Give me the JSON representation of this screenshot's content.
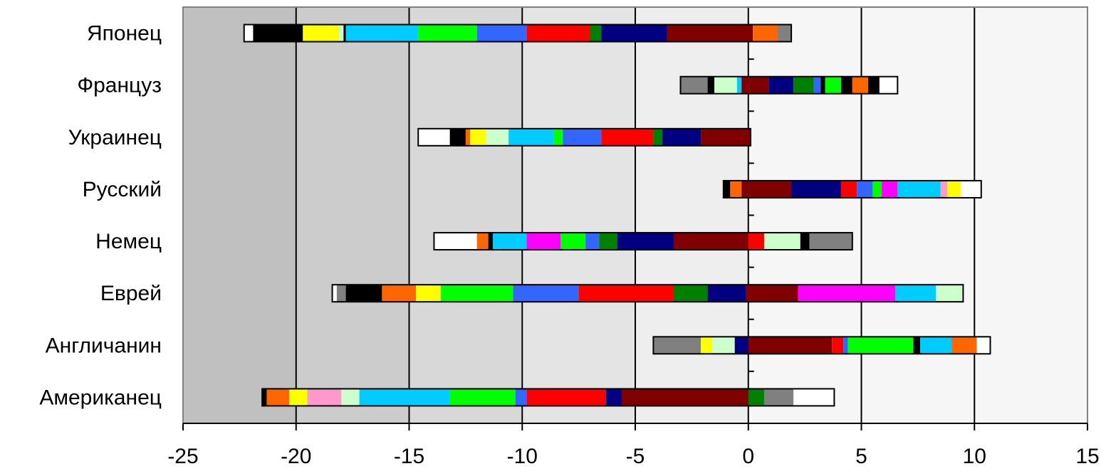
{
  "chart_data": {
    "type": "bar",
    "orientation": "horizontal",
    "stacked": true,
    "title": "",
    "xlabel": "",
    "ylabel": "",
    "xlim": [
      -25,
      15
    ],
    "xticks": [
      -25,
      -20,
      -15,
      -10,
      -5,
      0,
      5,
      10,
      15
    ],
    "tick_labels": [
      "-25",
      "-20",
      "-15",
      "-10",
      "-5",
      "0",
      "5",
      "10",
      "15"
    ],
    "grid": "vertical",
    "legend": "none",
    "categories": [
      "Японец",
      "Француз",
      "Украинец",
      "Русский",
      "Немец",
      "Еврей",
      "Англичанин",
      "Американец"
    ],
    "colors": {
      "bg_band_1": "#c0c0c0",
      "bg_band_2": "#cccccc",
      "bg_band_3": "#d8d8d8",
      "bg_band_4": "#e4e4e4",
      "bg_band_5": "#eeeeee",
      "bg_band_6": "#f6f6f6",
      "border": "#808080"
    },
    "bars": [
      {
        "name": "Японец",
        "segments": [
          {
            "from": -22.3,
            "to": -21.9,
            "color": "#ffffff"
          },
          {
            "from": -21.9,
            "to": -19.7,
            "color": "#000000"
          },
          {
            "from": -19.7,
            "to": -18.1,
            "color": "#ffff00"
          },
          {
            "from": -18.1,
            "to": -17.9,
            "color": "#ccffcc"
          },
          {
            "from": -17.9,
            "to": -17.8,
            "color": "#000000"
          },
          {
            "from": -17.8,
            "to": -14.6,
            "color": "#00ccff"
          },
          {
            "from": -14.6,
            "to": -12.0,
            "color": "#00ff00"
          },
          {
            "from": -12.0,
            "to": -9.8,
            "color": "#3366ff"
          },
          {
            "from": -9.8,
            "to": -7.0,
            "color": "#ff0000"
          },
          {
            "from": -7.0,
            "to": -6.5,
            "color": "#008000"
          },
          {
            "from": -6.5,
            "to": -3.6,
            "color": "#000080"
          },
          {
            "from": -3.6,
            "to": 0.2,
            "color": "#800000"
          },
          {
            "from": 0.2,
            "to": 1.3,
            "color": "#ff6600"
          },
          {
            "from": 1.3,
            "to": 1.9,
            "color": "#808080"
          }
        ]
      },
      {
        "name": "Француз",
        "segments": [
          {
            "from": -3.0,
            "to": -1.8,
            "color": "#808080"
          },
          {
            "from": -1.8,
            "to": -1.5,
            "color": "#000000"
          },
          {
            "from": -1.5,
            "to": -0.5,
            "color": "#ccffcc"
          },
          {
            "from": -0.5,
            "to": -0.3,
            "color": "#00ccff"
          },
          {
            "from": -0.3,
            "to": 0.9,
            "color": "#800000"
          },
          {
            "from": 0.9,
            "to": 2.0,
            "color": "#000080"
          },
          {
            "from": 2.0,
            "to": 2.9,
            "color": "#008000"
          },
          {
            "from": 2.9,
            "to": 3.2,
            "color": "#3366ff"
          },
          {
            "from": 3.2,
            "to": 3.4,
            "color": "#000000"
          },
          {
            "from": 3.4,
            "to": 4.1,
            "color": "#00ff00"
          },
          {
            "from": 4.1,
            "to": 4.6,
            "color": "#000000"
          },
          {
            "from": 4.6,
            "to": 5.3,
            "color": "#ff6600"
          },
          {
            "from": 5.3,
            "to": 5.8,
            "color": "#000000"
          },
          {
            "from": 5.8,
            "to": 6.6,
            "color": "#ffffff"
          }
        ]
      },
      {
        "name": "Украинец",
        "segments": [
          {
            "from": -14.6,
            "to": -13.2,
            "color": "#ffffff"
          },
          {
            "from": -13.2,
            "to": -12.5,
            "color": "#000000"
          },
          {
            "from": -12.5,
            "to": -12.3,
            "color": "#ff6600"
          },
          {
            "from": -12.3,
            "to": -11.6,
            "color": "#ffff00"
          },
          {
            "from": -11.6,
            "to": -10.6,
            "color": "#ccffcc"
          },
          {
            "from": -10.6,
            "to": -8.6,
            "color": "#00ccff"
          },
          {
            "from": -8.6,
            "to": -8.2,
            "color": "#00ff00"
          },
          {
            "from": -8.2,
            "to": -6.5,
            "color": "#3366ff"
          },
          {
            "from": -6.5,
            "to": -4.2,
            "color": "#ff0000"
          },
          {
            "from": -4.2,
            "to": -3.8,
            "color": "#008000"
          },
          {
            "from": -3.8,
            "to": -2.1,
            "color": "#000080"
          },
          {
            "from": -2.1,
            "to": 0.1,
            "color": "#800000"
          }
        ]
      },
      {
        "name": "Русский",
        "segments": [
          {
            "from": -1.1,
            "to": -0.8,
            "color": "#000000"
          },
          {
            "from": -0.8,
            "to": -0.3,
            "color": "#ff6600"
          },
          {
            "from": -0.3,
            "to": 1.9,
            "color": "#800000"
          },
          {
            "from": 1.9,
            "to": 4.1,
            "color": "#000080"
          },
          {
            "from": 4.1,
            "to": 4.8,
            "color": "#ff0000"
          },
          {
            "from": 4.8,
            "to": 5.5,
            "color": "#3366ff"
          },
          {
            "from": 5.5,
            "to": 5.9,
            "color": "#00ff00"
          },
          {
            "from": 5.9,
            "to": 6.6,
            "color": "#ff00ff"
          },
          {
            "from": 6.6,
            "to": 8.5,
            "color": "#00ccff"
          },
          {
            "from": 8.5,
            "to": 8.8,
            "color": "#ff99cc"
          },
          {
            "from": 8.8,
            "to": 9.4,
            "color": "#ffff00"
          },
          {
            "from": 9.4,
            "to": 10.3,
            "color": "#ffffff"
          }
        ]
      },
      {
        "name": "Немец",
        "segments": [
          {
            "from": -13.9,
            "to": -12.0,
            "color": "#ffffff"
          },
          {
            "from": -12.0,
            "to": -11.5,
            "color": "#ff6600"
          },
          {
            "from": -11.5,
            "to": -11.3,
            "color": "#000000"
          },
          {
            "from": -11.3,
            "to": -9.8,
            "color": "#00ccff"
          },
          {
            "from": -9.8,
            "to": -8.3,
            "color": "#ff00ff"
          },
          {
            "from": -8.3,
            "to": -7.2,
            "color": "#00ff00"
          },
          {
            "from": -7.2,
            "to": -6.6,
            "color": "#3366ff"
          },
          {
            "from": -6.6,
            "to": -5.8,
            "color": "#008000"
          },
          {
            "from": -5.8,
            "to": -3.3,
            "color": "#000080"
          },
          {
            "from": -3.3,
            "to": 0.0,
            "color": "#800000"
          },
          {
            "from": 0.0,
            "to": 0.7,
            "color": "#ff0000"
          },
          {
            "from": 0.7,
            "to": 2.3,
            "color": "#ccffcc"
          },
          {
            "from": 2.3,
            "to": 2.7,
            "color": "#000000"
          },
          {
            "from": 2.7,
            "to": 4.6,
            "color": "#808080"
          }
        ]
      },
      {
        "name": "Еврей",
        "segments": [
          {
            "from": -18.4,
            "to": -18.2,
            "color": "#ffffff"
          },
          {
            "from": -18.2,
            "to": -17.8,
            "color": "#808080"
          },
          {
            "from": -17.8,
            "to": -16.2,
            "color": "#000000"
          },
          {
            "from": -16.2,
            "to": -14.7,
            "color": "#ff6600"
          },
          {
            "from": -14.7,
            "to": -13.6,
            "color": "#ffff00"
          },
          {
            "from": -13.6,
            "to": -10.4,
            "color": "#00ff00"
          },
          {
            "from": -10.4,
            "to": -7.5,
            "color": "#3366ff"
          },
          {
            "from": -7.5,
            "to": -3.3,
            "color": "#ff0000"
          },
          {
            "from": -3.3,
            "to": -1.8,
            "color": "#008000"
          },
          {
            "from": -1.8,
            "to": -0.1,
            "color": "#000080"
          },
          {
            "from": -0.1,
            "to": 2.2,
            "color": "#800000"
          },
          {
            "from": 2.2,
            "to": 6.5,
            "color": "#ff00ff"
          },
          {
            "from": 6.5,
            "to": 8.3,
            "color": "#00ccff"
          },
          {
            "from": 8.3,
            "to": 9.5,
            "color": "#ccffcc"
          }
        ]
      },
      {
        "name": "Англичанин",
        "segments": [
          {
            "from": -4.2,
            "to": -2.1,
            "color": "#808080"
          },
          {
            "from": -2.1,
            "to": -1.6,
            "color": "#ffff00"
          },
          {
            "from": -1.6,
            "to": -0.6,
            "color": "#ccffcc"
          },
          {
            "from": -0.6,
            "to": 0.0,
            "color": "#000080"
          },
          {
            "from": 0.0,
            "to": 3.7,
            "color": "#800000"
          },
          {
            "from": 3.7,
            "to": 4.2,
            "color": "#ff0000"
          },
          {
            "from": 4.2,
            "to": 4.4,
            "color": "#3366ff"
          },
          {
            "from": 4.4,
            "to": 7.3,
            "color": "#00ff00"
          },
          {
            "from": 7.3,
            "to": 7.6,
            "color": "#000000"
          },
          {
            "from": 7.6,
            "to": 9.0,
            "color": "#00ccff"
          },
          {
            "from": 9.0,
            "to": 10.1,
            "color": "#ff6600"
          },
          {
            "from": 10.1,
            "to": 10.7,
            "color": "#ffffff"
          }
        ]
      },
      {
        "name": "Американец",
        "segments": [
          {
            "from": -21.5,
            "to": -21.3,
            "color": "#000000"
          },
          {
            "from": -21.3,
            "to": -20.3,
            "color": "#ff6600"
          },
          {
            "from": -20.3,
            "to": -19.5,
            "color": "#ffff00"
          },
          {
            "from": -19.5,
            "to": -18.0,
            "color": "#ff99cc"
          },
          {
            "from": -18.0,
            "to": -17.2,
            "color": "#ccffcc"
          },
          {
            "from": -17.2,
            "to": -13.2,
            "color": "#00ccff"
          },
          {
            "from": -13.2,
            "to": -10.3,
            "color": "#00ff00"
          },
          {
            "from": -10.3,
            "to": -9.8,
            "color": "#3366ff"
          },
          {
            "from": -9.8,
            "to": -6.3,
            "color": "#ff0000"
          },
          {
            "from": -6.3,
            "to": -5.6,
            "color": "#000080"
          },
          {
            "from": -5.6,
            "to": 0.0,
            "color": "#800000"
          },
          {
            "from": 0.0,
            "to": 0.7,
            "color": "#008000"
          },
          {
            "from": 0.7,
            "to": 2.0,
            "color": "#808080"
          },
          {
            "from": 2.0,
            "to": 3.8,
            "color": "#ffffff"
          }
        ]
      }
    ]
  }
}
